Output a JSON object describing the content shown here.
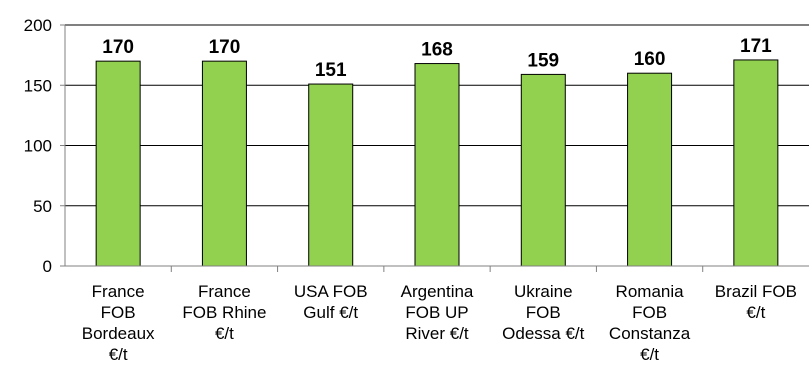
{
  "chart_data": {
    "type": "bar",
    "title": "",
    "xlabel": "",
    "ylabel": "",
    "ylim": [
      0,
      200
    ],
    "yticks": [
      0,
      50,
      100,
      150,
      200
    ],
    "grid": true,
    "legend": "none",
    "categories": [
      [
        "France",
        "FOB",
        "Bordeaux",
        "€/t"
      ],
      [
        "France",
        "FOB Rhine",
        "€/t"
      ],
      [
        "USA FOB",
        "Gulf €/t"
      ],
      [
        "Argentina",
        "FOB UP",
        "River €/t"
      ],
      [
        "Ukraine",
        "FOB",
        "Odessa €/t"
      ],
      [
        "Romania",
        "FOB",
        "Constanza",
        "€/t"
      ],
      [
        "Brazil FOB",
        "€/t"
      ]
    ],
    "values": [
      170,
      170,
      151,
      168,
      159,
      160,
      171
    ],
    "data_labels": [
      "170",
      "170",
      "151",
      "168",
      "159",
      "160",
      "171"
    ],
    "colors": {
      "bar_fill": "#92d050",
      "bar_stroke": "#000000",
      "grid": "#000000",
      "axis": "#808080",
      "text": "#000000"
    }
  }
}
